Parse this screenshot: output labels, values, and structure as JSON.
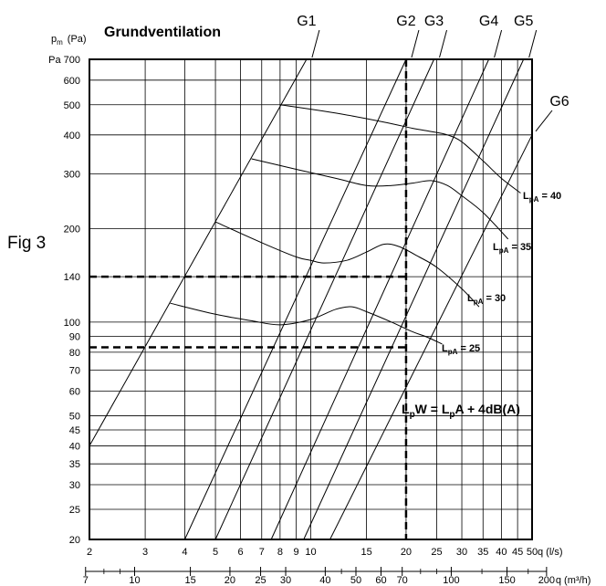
{
  "chart_data": {
    "type": "line",
    "title": "Grundventilation",
    "figure_label": "Fig 3",
    "y_unit_symbol": "p",
    "y_unit_sub": "m",
    "y_unit": "(Pa)",
    "y_scale": "log",
    "ylim": [
      20,
      700
    ],
    "y_ticks": [
      20,
      25,
      30,
      35,
      40,
      45,
      50,
      60,
      70,
      80,
      90,
      100,
      140,
      200,
      300,
      400,
      500,
      600,
      700
    ],
    "y_tick_labels": [
      "20",
      "25",
      "30",
      "35",
      "40",
      "45",
      "50",
      "60",
      "70",
      "80",
      "90",
      "100",
      "140",
      "200",
      "300",
      "400",
      "500",
      "600",
      "Pa 700"
    ],
    "x_scale": "log",
    "xlim": [
      2,
      50
    ],
    "x_unit": "q (l/s)",
    "x_ticks": [
      2,
      3,
      4,
      5,
      6,
      7,
      8,
      9,
      10,
      15,
      20,
      25,
      30,
      35,
      40,
      45,
      50
    ],
    "x_tick_labels": [
      "2",
      "3",
      "4",
      "5",
      "6",
      "7",
      "8",
      "9",
      "10",
      "15",
      "20",
      "25",
      "30",
      "35",
      "40",
      "45",
      "50"
    ],
    "x2_unit": "q (m³/h)",
    "x2_ticks": [
      7,
      10,
      15,
      20,
      25,
      30,
      40,
      50,
      60,
      70,
      100,
      150,
      200
    ],
    "x2_tick_labels": [
      "7",
      "10",
      "15",
      "20",
      "25",
      "30",
      "40",
      "50",
      "60",
      "70",
      "100",
      "150",
      "200"
    ],
    "grid": true,
    "series": [
      {
        "name": "G1",
        "x": [
          2.0,
          9.7
        ],
        "y": [
          40,
          700
        ]
      },
      {
        "name": "G2",
        "x": [
          4.0,
          20.0
        ],
        "y": [
          20,
          700
        ]
      },
      {
        "name": "G3",
        "x": [
          5.0,
          24.5
        ],
        "y": [
          20,
          700
        ]
      },
      {
        "name": "G4",
        "x": [
          7.5,
          36.5
        ],
        "y": [
          20,
          700
        ]
      },
      {
        "name": "G5",
        "x": [
          9.5,
          47.0
        ],
        "y": [
          20,
          700
        ]
      },
      {
        "name": "G6",
        "x": [
          11.5,
          50.0
        ],
        "y": [
          20,
          400
        ]
      }
    ],
    "noise_curves": [
      {
        "label": "L",
        "label_sub": "pA",
        "label_tail": " = 40",
        "x": [
          8.0,
          12.0,
          17.0,
          21.0,
          24.0,
          27.0,
          30.0,
          35.0,
          40.0,
          46.0
        ],
        "y": [
          500,
          470,
          440,
          420,
          410,
          400,
          380,
          330,
          290,
          260
        ]
      },
      {
        "label": "L",
        "label_sub": "pA",
        "label_tail": " = 35",
        "x": [
          6.5,
          9.0,
          12.0,
          15.0,
          18.0,
          21.0,
          24.0,
          27.0,
          30.0,
          35.0,
          42.0
        ],
        "y": [
          335,
          310,
          290,
          275,
          275,
          280,
          285,
          275,
          255,
          225,
          185
        ]
      },
      {
        "label": "L",
        "label_sub": "pA",
        "label_tail": " = 30",
        "x": [
          5.0,
          7.0,
          9.0,
          10.0,
          11.0,
          13.0,
          15.0,
          17.0,
          19.0,
          22.0,
          25.0,
          30.0,
          34.0
        ],
        "y": [
          210,
          180,
          162,
          158,
          155,
          158,
          168,
          178,
          175,
          162,
          150,
          128,
          112
        ]
      },
      {
        "label": "L",
        "label_sub": "pA",
        "label_tail": " = 25",
        "x": [
          3.6,
          5.0,
          6.5,
          8.0,
          10.0,
          12.0,
          13.5,
          15.0,
          18.0,
          21.0,
          23.0,
          26.0
        ],
        "y": [
          115,
          106,
          101,
          98,
          102,
          110,
          112,
          108,
          100,
          93,
          90,
          85
        ]
      }
    ],
    "guide_lines": {
      "x": 20,
      "y": [
        140,
        83
      ]
    },
    "formula": {
      "a": "L",
      "a_sub": "p",
      "mid": "W = L",
      "b_sub": "p",
      "tail": "A + 4dB(A)"
    }
  }
}
